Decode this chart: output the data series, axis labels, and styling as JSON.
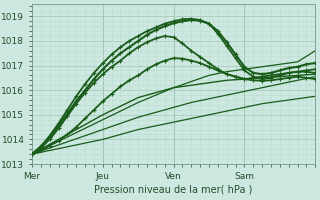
{
  "bg_color": "#cce8e0",
  "grid_major_color": "#aaccbb",
  "grid_minor_color": "#bbddcc",
  "line_color": "#1a5c1a",
  "xlabel": "Pression niveau de la mer( hPa )",
  "ylim": [
    1013.0,
    1019.5
  ],
  "yticks": [
    1013,
    1014,
    1015,
    1016,
    1017,
    1018,
    1019
  ],
  "xtick_positions": [
    0,
    48,
    96,
    144
  ],
  "xtick_labels": [
    "Mer",
    "Jeu",
    "Ven",
    "Sam"
  ],
  "total_steps": 192,
  "vline_positions": [
    0,
    48,
    96,
    144
  ],
  "lines_smooth": [
    {
      "x": [
        0,
        12,
        24,
        36,
        48,
        60,
        72,
        84,
        96,
        108,
        120,
        132,
        144,
        156,
        168,
        180,
        192
      ],
      "y": [
        1013.4,
        1013.65,
        1013.9,
        1014.15,
        1014.4,
        1014.65,
        1014.9,
        1015.1,
        1015.3,
        1015.5,
        1015.65,
        1015.8,
        1015.95,
        1016.1,
        1016.25,
        1016.4,
        1016.55
      ],
      "linewidth": 0.9
    },
    {
      "x": [
        0,
        12,
        24,
        36,
        48,
        60,
        72,
        84,
        96,
        108,
        120,
        132,
        144,
        156,
        168,
        180,
        192
      ],
      "y": [
        1013.4,
        1013.55,
        1013.7,
        1013.85,
        1014.0,
        1014.2,
        1014.4,
        1014.55,
        1014.7,
        1014.85,
        1015.0,
        1015.15,
        1015.3,
        1015.45,
        1015.55,
        1015.65,
        1015.75
      ],
      "linewidth": 0.9
    },
    {
      "x": [
        0,
        12,
        24,
        36,
        48,
        60,
        72,
        84,
        96,
        108,
        120,
        132,
        144,
        156,
        168,
        180,
        192
      ],
      "y": [
        1013.4,
        1013.75,
        1014.1,
        1014.45,
        1014.8,
        1015.15,
        1015.5,
        1015.8,
        1016.1,
        1016.35,
        1016.6,
        1016.75,
        1016.85,
        1016.95,
        1017.05,
        1017.15,
        1017.6
      ],
      "linewidth": 0.9
    },
    {
      "x": [
        0,
        12,
        24,
        36,
        48,
        60,
        72,
        84,
        96,
        108,
        120,
        132,
        144,
        156,
        168,
        180,
        192
      ],
      "y": [
        1013.4,
        1013.8,
        1014.2,
        1014.6,
        1015.0,
        1015.35,
        1015.7,
        1015.9,
        1016.1,
        1016.2,
        1016.3,
        1016.4,
        1016.45,
        1016.5,
        1016.55,
        1016.6,
        1016.65
      ],
      "linewidth": 1.0
    }
  ],
  "lines_marked": [
    {
      "x": [
        0,
        6,
        12,
        18,
        24,
        30,
        36,
        42,
        48,
        54,
        60,
        66,
        72,
        78,
        84,
        90,
        96,
        102,
        108,
        114,
        120,
        126,
        132,
        138,
        144,
        150,
        156,
        162,
        168,
        174,
        180,
        186,
        192
      ],
      "y": [
        1013.4,
        1013.55,
        1013.75,
        1013.95,
        1014.2,
        1014.5,
        1014.85,
        1015.2,
        1015.55,
        1015.85,
        1016.15,
        1016.4,
        1016.6,
        1016.85,
        1017.05,
        1017.2,
        1017.3,
        1017.28,
        1017.2,
        1017.1,
        1016.95,
        1016.8,
        1016.65,
        1016.55,
        1016.45,
        1016.4,
        1016.38,
        1016.4,
        1016.45,
        1016.5,
        1016.55,
        1016.5,
        1016.45
      ],
      "linewidth": 1.3
    },
    {
      "x": [
        0,
        6,
        12,
        18,
        24,
        30,
        36,
        42,
        48,
        54,
        60,
        66,
        72,
        78,
        84,
        90,
        96,
        102,
        108,
        114,
        120,
        126,
        132,
        138,
        144,
        150,
        156,
        162,
        168,
        174,
        180,
        186,
        192
      ],
      "y": [
        1013.4,
        1013.65,
        1014.0,
        1014.45,
        1014.95,
        1015.45,
        1015.9,
        1016.3,
        1016.65,
        1016.95,
        1017.2,
        1017.5,
        1017.75,
        1017.95,
        1018.1,
        1018.2,
        1018.15,
        1017.9,
        1017.6,
        1017.35,
        1017.1,
        1016.85,
        1016.65,
        1016.55,
        1016.45,
        1016.5,
        1016.55,
        1016.6,
        1016.65,
        1016.7,
        1016.75,
        1016.75,
        1016.7
      ],
      "linewidth": 1.3
    },
    {
      "x": [
        0,
        6,
        12,
        18,
        24,
        30,
        36,
        42,
        48,
        54,
        60,
        66,
        72,
        78,
        84,
        90,
        96,
        102,
        108,
        114,
        120,
        126,
        132,
        138,
        144,
        150,
        156,
        162,
        168,
        174,
        180,
        186,
        192
      ],
      "y": [
        1013.4,
        1013.7,
        1014.15,
        1014.65,
        1015.2,
        1015.75,
        1016.25,
        1016.7,
        1017.1,
        1017.45,
        1017.75,
        1018.0,
        1018.2,
        1018.4,
        1018.55,
        1018.7,
        1018.8,
        1018.88,
        1018.9,
        1018.85,
        1018.7,
        1018.3,
        1017.8,
        1017.3,
        1016.8,
        1016.55,
        1016.45,
        1016.5,
        1016.6,
        1016.7,
        1016.75,
        1016.8,
        1016.85
      ],
      "linewidth": 1.3
    },
    {
      "x": [
        0,
        6,
        12,
        18,
        24,
        30,
        36,
        42,
        48,
        54,
        60,
        66,
        72,
        78,
        84,
        90,
        96,
        102,
        108,
        114,
        120,
        126,
        132,
        138,
        144,
        150,
        156,
        162,
        168,
        174,
        180,
        186,
        192
      ],
      "y": [
        1013.4,
        1013.72,
        1014.1,
        1014.55,
        1015.05,
        1015.55,
        1016.0,
        1016.45,
        1016.85,
        1017.2,
        1017.5,
        1017.75,
        1018.0,
        1018.25,
        1018.45,
        1018.6,
        1018.72,
        1018.8,
        1018.85,
        1018.82,
        1018.7,
        1018.4,
        1017.95,
        1017.45,
        1016.95,
        1016.7,
        1016.65,
        1016.7,
        1016.8,
        1016.9,
        1016.95,
        1017.05,
        1017.1
      ],
      "linewidth": 1.5
    }
  ]
}
